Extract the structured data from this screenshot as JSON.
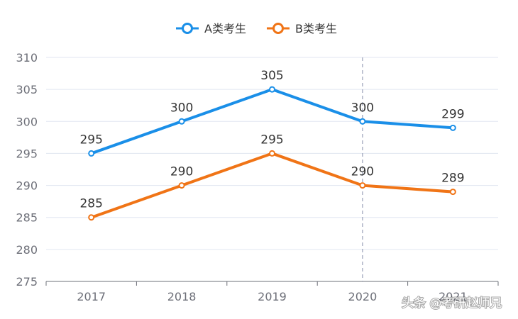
{
  "chart_data": {
    "type": "line",
    "categories": [
      "2017",
      "2018",
      "2019",
      "2020",
      "2021"
    ],
    "series": [
      {
        "name": "A类考生",
        "values": [
          295,
          300,
          305,
          300,
          299
        ],
        "color": "#1a8fe8"
      },
      {
        "name": "B类考生",
        "values": [
          285,
          290,
          295,
          290,
          289
        ],
        "color": "#f07416"
      }
    ],
    "ylim": [
      275,
      310
    ],
    "yticks": [
      275,
      280,
      285,
      290,
      295,
      300,
      305,
      310
    ],
    "grid": true,
    "legend_position": "top-center",
    "highlight_category": "2020",
    "title": "",
    "xlabel": "",
    "ylabel": ""
  },
  "watermark": "头条 @考研赵师兄"
}
